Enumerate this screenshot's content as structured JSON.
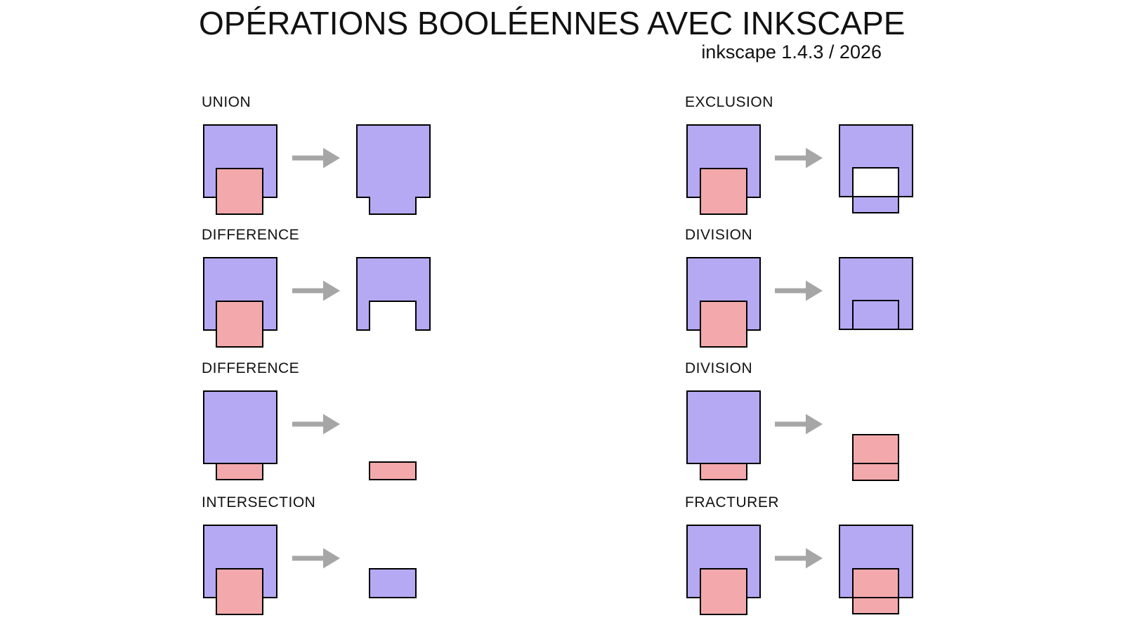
{
  "header": {
    "title": "OPÉRATIONS BOOLÉENNES AVEC INKSCAPE",
    "subtitle": "inkscape 1.4.3 / 2026"
  },
  "colors": {
    "background": "#ffffff",
    "text": "#111111",
    "purple": "#b5a9f3",
    "pink": "#f3a9ac",
    "stroke": "#000000",
    "arrow": "#a6a6a6",
    "hole": "#ffffff"
  },
  "icons": {
    "arrow": "arrow-right-icon"
  },
  "sections": [
    {
      "label": "UNION",
      "column": 0,
      "row": 0,
      "input": "pink-front-overlap",
      "result": "union"
    },
    {
      "label": "DIFFERENCE",
      "column": 0,
      "row": 1,
      "input": "pink-front-overlap",
      "result": "difference-notch"
    },
    {
      "label": "DIFFERENCE",
      "column": 0,
      "row": 2,
      "input": "pink-behind-strip",
      "result": "pink-strip"
    },
    {
      "label": "INTERSECTION",
      "column": 0,
      "row": 3,
      "input": "pink-front-overlap",
      "result": "intersection"
    },
    {
      "label": "EXCLUSION",
      "column": 1,
      "row": 0,
      "input": "pink-front-overlap",
      "result": "exclusion"
    },
    {
      "label": "DIVISION",
      "column": 1,
      "row": 1,
      "input": "pink-front-overlap",
      "result": "division-outline"
    },
    {
      "label": "DIVISION",
      "column": 1,
      "row": 2,
      "input": "pink-behind-strip",
      "result": "division-split-pink"
    },
    {
      "label": "FRACTURER",
      "column": 1,
      "row": 3,
      "input": "pink-front-overlap",
      "result": "fracture-split-pink"
    }
  ]
}
